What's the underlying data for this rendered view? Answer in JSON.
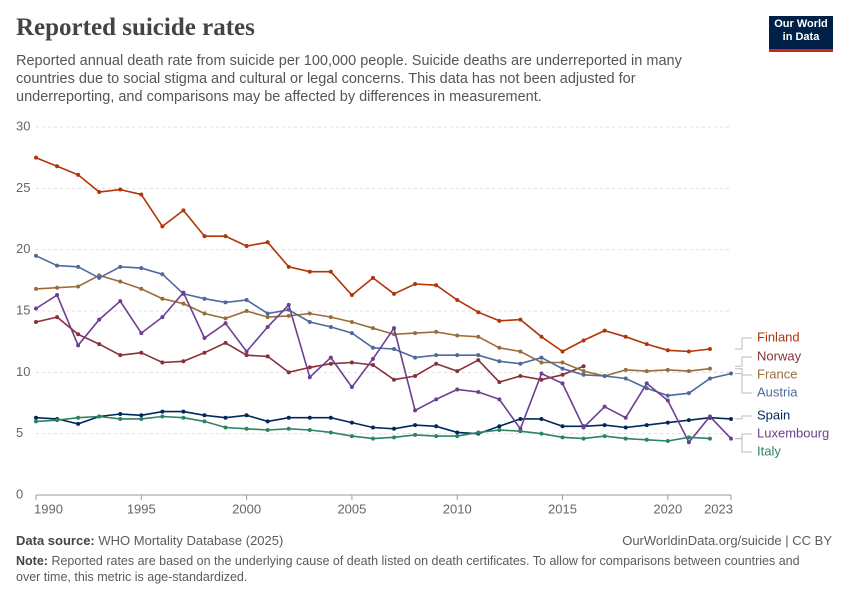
{
  "chart_data": {
    "type": "line",
    "title": "Reported suicide rates",
    "subtitle": "Reported annual death rate from suicide per 100,000 people. Suicide deaths are underreported in many countries due to social stigma and cultural or legal concerns. This data has not been adjusted for underreporting, and comparisons may be affected by differences in measurement.",
    "logo": [
      "Our World",
      "in Data"
    ],
    "source_label": "Data source:",
    "source": "WHO Mortality Database (2025)",
    "url": "OurWorldinData.org/suicide | CC BY",
    "note_label": "Note:",
    "note": "Reported rates are based on the underlying cause of death listed on death certificates. To allow for comparisons between countries and over time, this metric is age-standardized.",
    "x": [
      1990,
      1991,
      1992,
      1993,
      1994,
      1995,
      1996,
      1997,
      1998,
      1999,
      2000,
      2001,
      2002,
      2003,
      2004,
      2005,
      2006,
      2007,
      2008,
      2009,
      2010,
      2011,
      2012,
      2013,
      2014,
      2015,
      2016,
      2017,
      2018,
      2019,
      2020,
      2021,
      2022,
      2023
    ],
    "xlim": [
      1990,
      2023
    ],
    "xticks": [
      1990,
      1995,
      2000,
      2005,
      2010,
      2015,
      2020,
      2023
    ],
    "ylim": [
      0,
      30
    ],
    "yticks": [
      0,
      5,
      10,
      15,
      20,
      25,
      30
    ],
    "grid": true,
    "series": [
      {
        "name": "Finland",
        "color": "#b13507",
        "values": [
          27.5,
          26.8,
          26.1,
          24.7,
          24.9,
          24.5,
          21.9,
          23.2,
          21.1,
          21.1,
          20.3,
          20.6,
          18.6,
          18.2,
          18.2,
          16.3,
          17.7,
          16.4,
          17.2,
          17.1,
          15.9,
          14.9,
          14.2,
          14.3,
          12.9,
          11.7,
          12.6,
          13.4,
          12.9,
          12.3,
          11.8,
          11.7,
          11.9,
          null
        ]
      },
      {
        "name": "Norway",
        "color": "#883039",
        "values": [
          14.1,
          14.5,
          13.1,
          12.3,
          11.4,
          11.6,
          10.8,
          10.9,
          11.6,
          12.4,
          11.4,
          11.3,
          10.0,
          10.4,
          10.7,
          10.8,
          10.6,
          9.4,
          9.7,
          10.7,
          10.1,
          11.0,
          9.2,
          9.7,
          9.4,
          9.8,
          10.5,
          null,
          null,
          null,
          null,
          null,
          null,
          null
        ]
      },
      {
        "name": "France",
        "color": "#996d39",
        "values": [
          16.8,
          16.9,
          17.0,
          17.9,
          17.4,
          16.8,
          16.0,
          15.6,
          14.8,
          14.4,
          15.0,
          14.5,
          14.6,
          14.8,
          14.5,
          14.1,
          13.6,
          13.1,
          13.2,
          13.3,
          13.0,
          12.9,
          12.0,
          11.7,
          10.8,
          10.8,
          10.1,
          9.7,
          10.2,
          10.1,
          10.2,
          10.1,
          10.3,
          null
        ]
      },
      {
        "name": "Austria",
        "color": "#4c6a9c",
        "values": [
          19.5,
          18.7,
          18.6,
          17.7,
          18.6,
          18.5,
          18.0,
          16.4,
          16.0,
          15.7,
          15.9,
          14.8,
          15.1,
          14.1,
          13.7,
          13.2,
          12.0,
          11.9,
          11.2,
          11.4,
          11.4,
          11.4,
          10.9,
          10.7,
          11.2,
          10.3,
          9.8,
          9.7,
          9.5,
          8.7,
          8.1,
          8.3,
          9.5,
          9.9
        ]
      },
      {
        "name": "Spain",
        "color": "#00295b",
        "values": [
          6.3,
          6.2,
          5.8,
          6.4,
          6.6,
          6.5,
          6.8,
          6.8,
          6.5,
          6.3,
          6.5,
          6.0,
          6.3,
          6.3,
          6.3,
          5.9,
          5.5,
          5.4,
          5.7,
          5.6,
          5.1,
          5.0,
          5.6,
          6.2,
          6.2,
          5.6,
          5.6,
          5.7,
          5.5,
          5.7,
          5.9,
          6.1,
          6.3,
          6.2
        ]
      },
      {
        "name": "Luxembourg",
        "color": "#6d3e91",
        "values": [
          15.2,
          16.3,
          12.2,
          14.3,
          15.8,
          13.2,
          14.5,
          16.5,
          12.8,
          14.0,
          11.7,
          13.7,
          15.5,
          9.6,
          11.2,
          8.8,
          11.1,
          13.6,
          6.9,
          7.8,
          8.6,
          8.4,
          7.8,
          5.4,
          9.9,
          9.1,
          5.5,
          7.2,
          6.3,
          9.1,
          7.7,
          4.3,
          6.4,
          4.6
        ]
      },
      {
        "name": "Italy",
        "color": "#2c8465",
        "values": [
          6.0,
          6.1,
          6.3,
          6.4,
          6.2,
          6.2,
          6.4,
          6.3,
          6.0,
          5.5,
          5.4,
          5.3,
          5.4,
          5.3,
          5.1,
          4.8,
          4.6,
          4.7,
          4.9,
          4.8,
          4.8,
          5.1,
          5.3,
          5.2,
          5.0,
          4.7,
          4.6,
          4.8,
          4.6,
          4.5,
          4.4,
          4.7,
          4.6,
          null
        ]
      }
    ]
  }
}
